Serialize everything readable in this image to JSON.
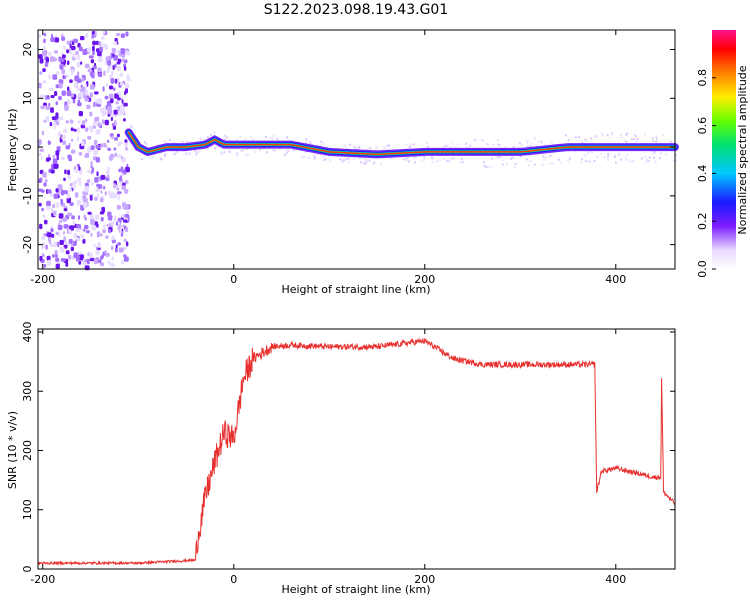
{
  "title": "S122.2023.098.19.43.G01",
  "chart_data": [
    {
      "type": "heatmap",
      "xlabel": "Height of straight line (km)",
      "ylabel": "Frequency (Hz)",
      "xlim": [
        -205,
        462
      ],
      "ylim": [
        -25,
        24
      ],
      "xticks": [
        "-200",
        "0",
        "200",
        "400"
      ],
      "yticks": [
        "20",
        "10",
        "0",
        "-10",
        "-20"
      ],
      "colorbar": {
        "label": "Normalized spectral amplitude",
        "range": [
          0,
          1
        ],
        "ticks": [
          "0.0",
          "0.2",
          "0.4",
          "0.6",
          "0.8"
        ]
      },
      "ridge": {
        "x": [
          -110,
          -100,
          -90,
          -80,
          -70,
          -50,
          -30,
          -20,
          -10,
          0,
          20,
          60,
          100,
          150,
          200,
          250,
          300,
          350,
          400,
          462
        ],
        "y": [
          3,
          0,
          -1,
          -0.5,
          0,
          0,
          0.5,
          1.5,
          0.5,
          0.5,
          0.5,
          0.5,
          -1,
          -1.5,
          -1,
          -1,
          -1,
          0,
          0,
          0
        ]
      }
    },
    {
      "type": "line",
      "xlabel": "Height of straight line (km)",
      "ylabel": "SNR (10 * v/v)",
      "xlim": [
        -205,
        462
      ],
      "ylim": [
        0,
        405
      ],
      "xticks": [
        "-200",
        "0",
        "200",
        "400"
      ],
      "yticks": [
        "400",
        "300",
        "200",
        "100",
        "0"
      ],
      "color": "#e8312f",
      "x": [
        -205,
        -100,
        -40,
        -38,
        -30,
        -20,
        -10,
        0,
        10,
        20,
        40,
        60,
        100,
        150,
        200,
        230,
        260,
        300,
        340,
        378,
        380,
        385,
        400,
        440,
        447,
        448,
        450,
        462
      ],
      "y": [
        10,
        10,
        15,
        50,
        120,
        180,
        230,
        220,
        320,
        355,
        375,
        378,
        375,
        375,
        385,
        355,
        345,
        345,
        345,
        345,
        130,
        165,
        170,
        155,
        155,
        320,
        130,
        110
      ]
    }
  ]
}
